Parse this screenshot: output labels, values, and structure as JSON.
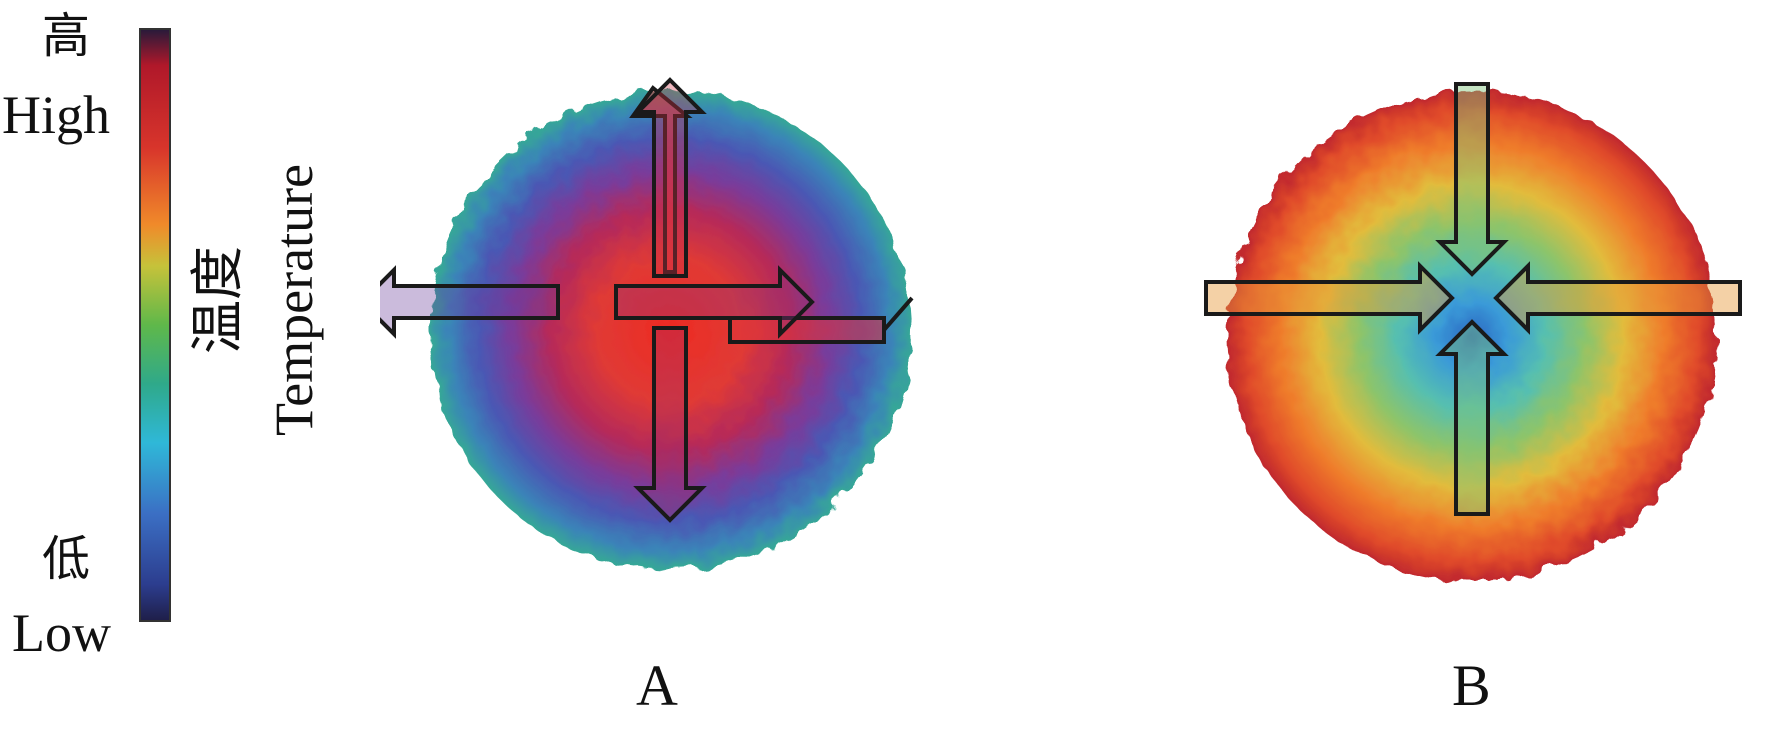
{
  "legend": {
    "high_cn": "高",
    "high_en": "High",
    "low_cn": "低",
    "low_en": "Low",
    "gradient_top_to_bottom": [
      "#2a1a3a",
      "#b0182a",
      "#d8352b",
      "#f08a2a",
      "#c6c23a",
      "#5fb84a",
      "#2fa98a",
      "#2fb8d8",
      "#3b6fc4",
      "#2c3d8e",
      "#1f1f4a"
    ]
  },
  "axis": {
    "title_cn": "温度",
    "title_en": "Temperature"
  },
  "panels": [
    {
      "label": "A",
      "arrow_direction": "outward",
      "center_color": "#e8272a",
      "edge_color": "#2fa28c"
    },
    {
      "label": "B",
      "arrow_direction": "inward",
      "center_color": "#2f6fc8",
      "edge_color": "#c8252a"
    }
  ]
}
